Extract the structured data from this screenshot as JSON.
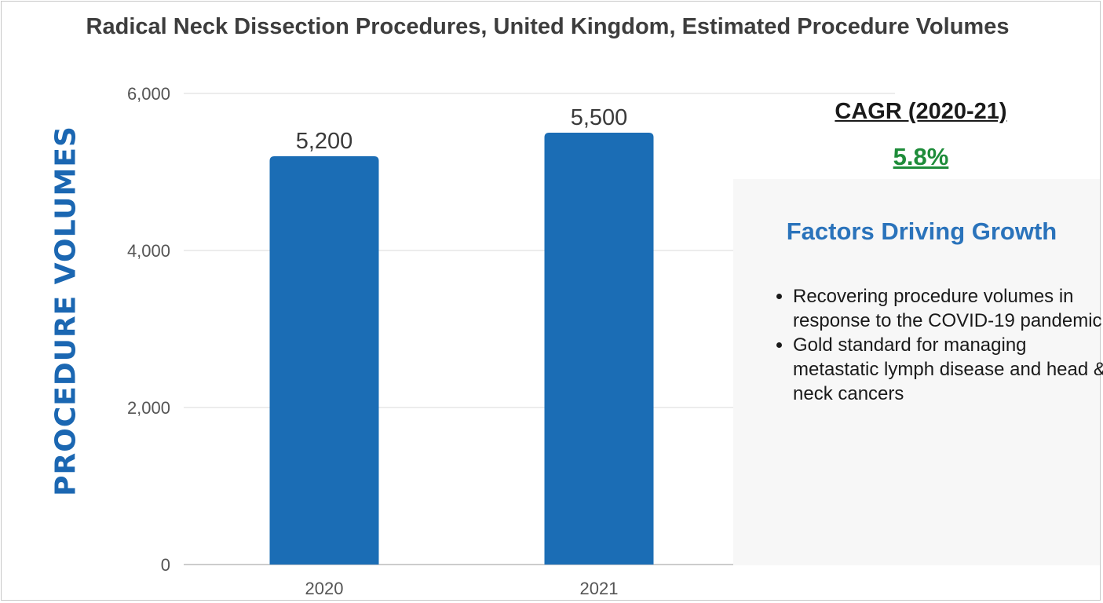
{
  "chart_data": {
    "type": "bar",
    "title": "Radical Neck Dissection Procedures, United Kingdom, Estimated Procedure Volumes",
    "ylabel": "PROCEDURE VOLUMES",
    "xlabel": "",
    "categories": [
      "2020",
      "2021"
    ],
    "values": [
      5200,
      5500
    ],
    "value_labels": [
      "5,200",
      "5,500"
    ],
    "ylim": [
      0,
      6000
    ],
    "yticks": [
      0,
      2000,
      4000,
      6000
    ],
    "ytick_labels": [
      "0",
      "2,000",
      "4,000",
      "6,000"
    ],
    "grid": true,
    "bar_color": "#1b6db5"
  },
  "cagr": {
    "label": "CAGR (2020-21)",
    "value": "5.8%",
    "value_color": "#1e8c3a"
  },
  "factors": {
    "title": "Factors Driving Growth",
    "items": [
      "Recovering procedure volumes in response to the COVID-19 pandemic",
      "Gold standard for managing metastatic lymph disease and head & neck cancers"
    ]
  }
}
